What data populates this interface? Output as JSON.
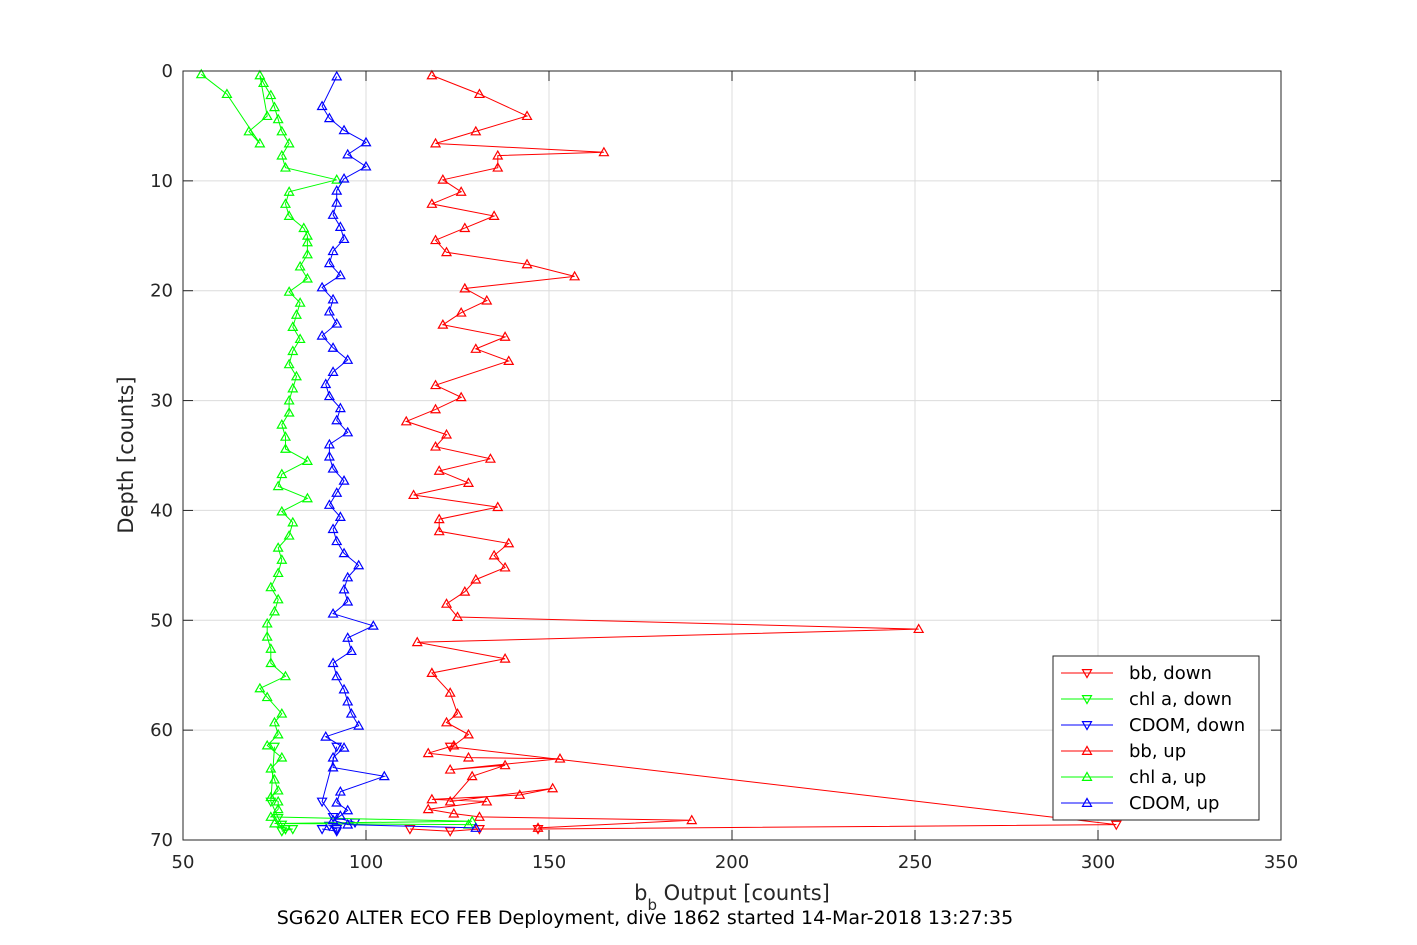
{
  "chart_data": {
    "type": "line",
    "xlabel_base": "b",
    "xlabel_sub": "b",
    "xlabel_rest": " Output [counts]",
    "ylabel": "Depth [counts]",
    "caption": "SG620 ALTER ECO FEB Deployment, dive 1862 started 14-Mar-2018 13:27:35",
    "xlim": [
      50,
      350
    ],
    "ylim": [
      0,
      70
    ],
    "y_reversed": true,
    "grid": true,
    "legend_position": "bottom-right",
    "xticks": [
      50,
      100,
      150,
      200,
      250,
      300,
      350
    ],
    "yticks": [
      0,
      10,
      20,
      30,
      40,
      50,
      60,
      70
    ],
    "xtick_labels": [
      "50",
      "100",
      "150",
      "200",
      "250",
      "300",
      "350"
    ],
    "ytick_labels": [
      "0",
      "10",
      "20",
      "30",
      "40",
      "50",
      "60",
      "70"
    ],
    "series": [
      {
        "name": "bb, down",
        "color": "#ff0000",
        "marker": "triangle-down",
        "x": [
          123,
          305,
          147,
          131,
          123,
          112
        ],
        "y": [
          61.5,
          68.6,
          69.0,
          69.0,
          69.2,
          69.0
        ]
      },
      {
        "name": "chl a, down",
        "color": "#00ff00",
        "marker": "triangle-down",
        "x": [
          75,
          74,
          76,
          77,
          78,
          80,
          77,
          78
        ],
        "y": [
          61.5,
          66.5,
          68.0,
          68.6,
          69.0,
          69.0,
          69.2,
          69.0
        ]
      },
      {
        "name": "CDOM, down",
        "color": "#0000ff",
        "marker": "triangle-down",
        "x": [
          92,
          88,
          91,
          97,
          90,
          92,
          92,
          88
        ],
        "y": [
          61.5,
          66.5,
          67.9,
          68.4,
          68.7,
          69.0,
          69.2,
          69.0
        ]
      },
      {
        "name": "bb, up",
        "color": "#ff0000",
        "marker": "triangle-up",
        "x": [
          147,
          189,
          131,
          124,
          117,
          133,
          118,
          142,
          151,
          123,
          129,
          138,
          123,
          153,
          128,
          117,
          124,
          128,
          122,
          125,
          123,
          118,
          138,
          114,
          251,
          125,
          122,
          127,
          130,
          138,
          135,
          139,
          120,
          120,
          136,
          113,
          128,
          120,
          134,
          119,
          122,
          111,
          119,
          126,
          119,
          139,
          130,
          138,
          121,
          126,
          133,
          127,
          157,
          144,
          122,
          119,
          127,
          135,
          118,
          126,
          121,
          136,
          136,
          165,
          119,
          130,
          144,
          131,
          118
        ],
        "y": [
          68.9,
          68.2,
          67.9,
          67.6,
          67.2,
          66.5,
          66.3,
          65.9,
          65.3,
          66.5,
          64.2,
          63.2,
          63.6,
          62.6,
          62.5,
          62.1,
          61.4,
          60.4,
          59.3,
          58.5,
          56.6,
          54.8,
          53.5,
          52.0,
          50.8,
          49.7,
          48.5,
          47.4,
          46.3,
          45.2,
          44.1,
          43.0,
          41.9,
          40.8,
          39.7,
          38.6,
          37.5,
          36.4,
          35.3,
          34.2,
          33.1,
          31.9,
          30.8,
          29.7,
          28.6,
          26.4,
          25.3,
          24.2,
          23.1,
          22.0,
          20.9,
          19.8,
          18.7,
          17.6,
          16.5,
          15.4,
          14.3,
          13.2,
          12.1,
          11.0,
          9.9,
          8.8,
          7.7,
          7.4,
          6.6,
          5.5,
          4.1,
          2.1,
          0.4
        ]
      },
      {
        "name": "chl a, up",
        "color": "#00ff00",
        "marker": "triangle-up",
        "x": [
          128,
          75,
          129,
          74,
          76,
          76,
          74,
          76,
          75,
          74,
          77,
          73,
          76,
          75,
          77,
          73,
          71,
          78,
          74,
          74,
          73,
          73,
          75,
          76,
          74,
          76,
          77,
          76,
          79,
          80,
          77,
          84,
          76,
          77,
          84,
          78,
          78,
          77,
          79,
          79,
          80,
          81,
          79,
          80,
          82,
          80,
          81,
          82,
          79,
          84,
          82,
          84,
          84,
          84,
          83,
          79,
          78,
          79,
          92,
          78,
          77,
          79,
          77,
          76,
          75,
          74,
          72,
          71,
          73,
          68,
          71,
          62,
          55
        ],
        "y": [
          68.6,
          68.5,
          68.3,
          67.9,
          67.2,
          66.5,
          66.1,
          65.5,
          64.5,
          63.5,
          62.5,
          61.4,
          60.4,
          59.3,
          58.5,
          57.0,
          56.2,
          55.1,
          53.9,
          52.6,
          51.5,
          50.3,
          49.2,
          48.1,
          47.0,
          45.7,
          44.5,
          43.4,
          42.3,
          41.1,
          40.1,
          38.9,
          37.8,
          36.7,
          35.5,
          34.4,
          33.3,
          32.2,
          31.1,
          30.0,
          28.9,
          27.8,
          26.7,
          25.5,
          24.4,
          23.3,
          22.2,
          21.1,
          20.1,
          18.9,
          17.8,
          16.7,
          15.6,
          15.0,
          14.3,
          13.2,
          12.1,
          11.0,
          9.9,
          8.8,
          7.7,
          6.6,
          5.5,
          4.4,
          3.3,
          2.2,
          1.1,
          0.4,
          4.1,
          5.5,
          6.6,
          2.1,
          0.3
        ],
        "note": ""
      },
      {
        "name": "CDOM, up",
        "color": "#0000ff",
        "marker": "triangle-up",
        "x": [
          130,
          95,
          91,
          93,
          95,
          92,
          93,
          105,
          91,
          91,
          94,
          89,
          98,
          96,
          95,
          94,
          92,
          91,
          96,
          95,
          102,
          91,
          95,
          94,
          95,
          98,
          94,
          92,
          91,
          93,
          90,
          92,
          94,
          91,
          90,
          90,
          95,
          92,
          93,
          90,
          89,
          91,
          95,
          91,
          88,
          92,
          90,
          91,
          88,
          93,
          90,
          91,
          94,
          93,
          91,
          92,
          92,
          94,
          100,
          95,
          100,
          94,
          90,
          88,
          92
        ],
        "y": [
          68.9,
          68.6,
          68.2,
          67.8,
          67.3,
          66.6,
          65.6,
          64.2,
          63.4,
          62.5,
          61.6,
          60.6,
          59.6,
          58.5,
          57.4,
          56.3,
          55.1,
          53.9,
          52.8,
          51.6,
          50.5,
          49.4,
          48.3,
          47.2,
          46.1,
          45.0,
          43.9,
          42.8,
          41.7,
          40.6,
          39.5,
          38.4,
          37.3,
          36.2,
          35.1,
          34.0,
          32.9,
          31.8,
          30.7,
          29.6,
          28.5,
          27.4,
          26.3,
          25.2,
          24.1,
          23.0,
          21.9,
          20.8,
          19.7,
          18.6,
          17.5,
          16.4,
          15.3,
          14.2,
          13.1,
          12.0,
          10.9,
          9.8,
          8.7,
          7.6,
          6.5,
          5.4,
          4.3,
          3.2,
          0.5
        ]
      }
    ]
  }
}
